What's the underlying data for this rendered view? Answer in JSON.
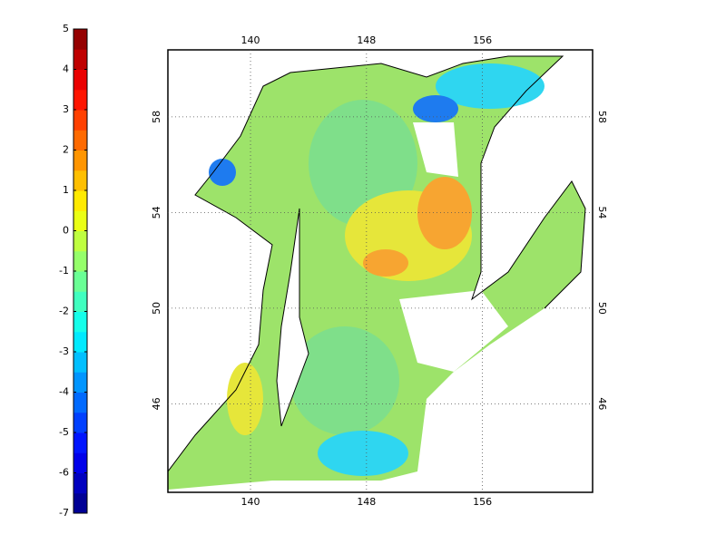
{
  "chart_data": {
    "type": "map",
    "colorbar": {
      "lim": [
        -7,
        5
      ],
      "ticks": [
        5,
        4,
        3,
        2,
        1,
        0,
        -1,
        -2,
        -3,
        -4,
        -5,
        -6,
        -7
      ]
    },
    "xlim": [
      134.3,
      163.6
    ],
    "xticks": [
      140,
      148,
      156
    ],
    "ylim": [
      42.3,
      60.8
    ],
    "yticks": [
      58,
      54,
      50,
      46
    ]
  }
}
